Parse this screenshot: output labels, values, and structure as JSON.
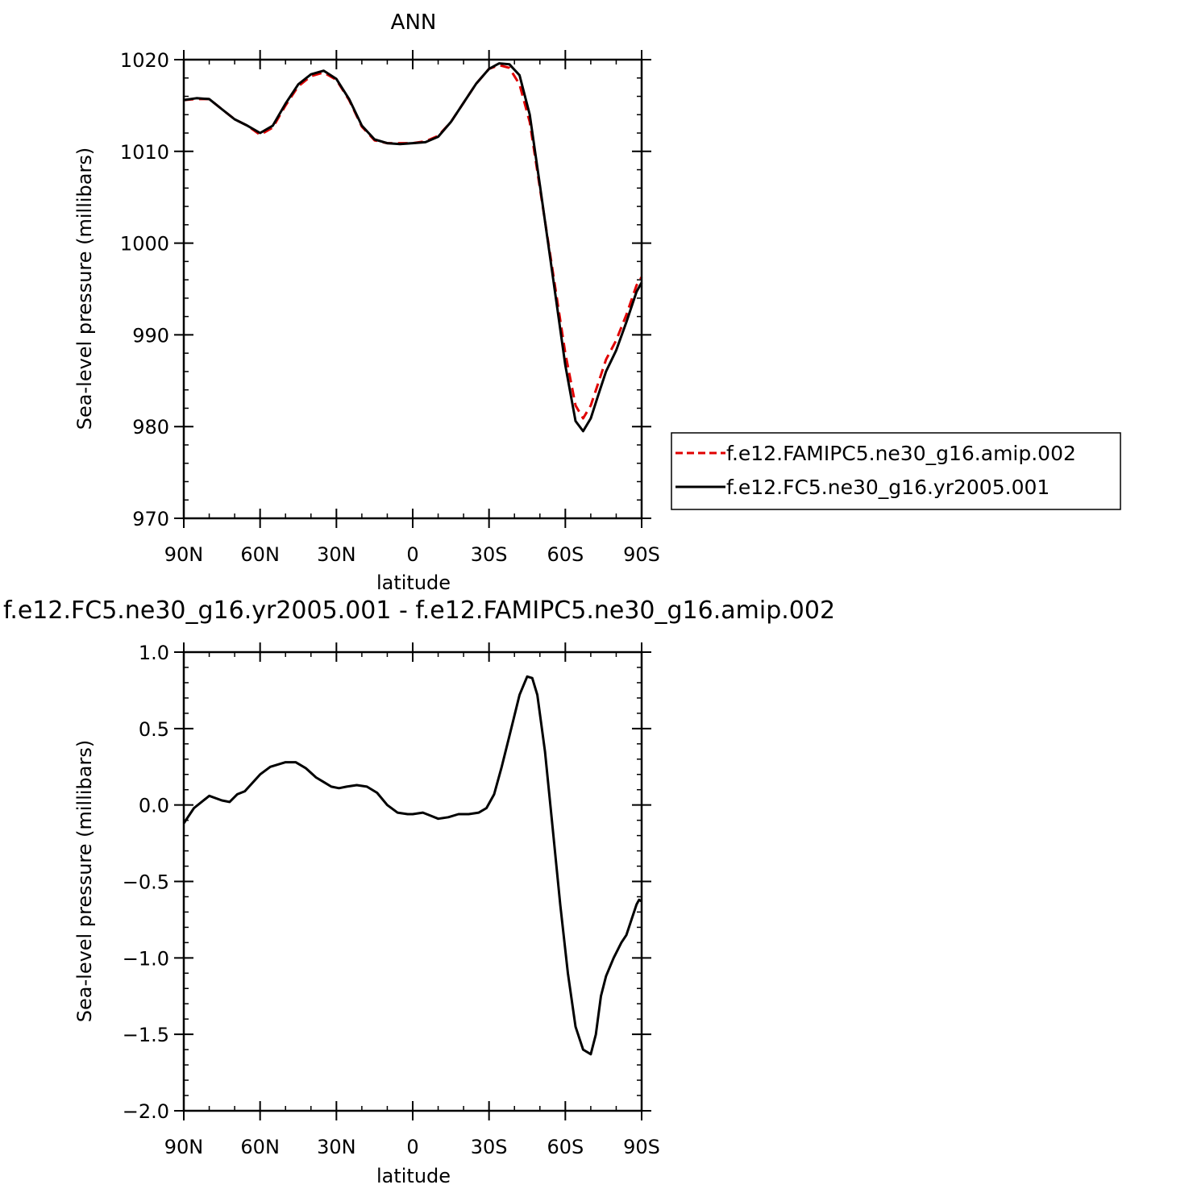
{
  "chart_data": [
    {
      "type": "line",
      "title": "ANN",
      "xlabel": "latitude",
      "ylabel": "Sea-level pressure (millibars)",
      "xlim": [
        90,
        -90
      ],
      "ylim": [
        970,
        1020
      ],
      "x_ticks": [
        {
          "value": 90,
          "label": "90N"
        },
        {
          "value": 60,
          "label": "60N"
        },
        {
          "value": 30,
          "label": "30N"
        },
        {
          "value": 0,
          "label": "0"
        },
        {
          "value": -30,
          "label": "30S"
        },
        {
          "value": -60,
          "label": "60S"
        },
        {
          "value": -90,
          "label": "90S"
        }
      ],
      "y_ticks": [
        {
          "value": 1020,
          "label": "1020"
        },
        {
          "value": 1010,
          "label": "1010"
        },
        {
          "value": 1000,
          "label": "1000"
        },
        {
          "value": 990,
          "label": "990"
        },
        {
          "value": 980,
          "label": "980"
        },
        {
          "value": 970,
          "label": "970"
        }
      ],
      "legend_position": "right",
      "series": [
        {
          "name": "f.e12.FAMIPC5.ne30_g16.amip.002",
          "color": "#e00000",
          "dash": "dashed",
          "x": [
            90,
            85,
            80,
            75,
            70,
            65,
            60,
            55,
            50,
            45,
            40,
            35,
            30,
            25,
            20,
            15,
            10,
            5,
            0,
            -5,
            -10,
            -15,
            -20,
            -25,
            -30,
            -34,
            -38,
            -42,
            -46,
            -50,
            -55,
            -60,
            -64,
            -67,
            -70,
            -73,
            -76,
            -80,
            -84,
            -88,
            -90
          ],
          "y": [
            1015.6,
            1015.7,
            1015.7,
            1014.6,
            1013.5,
            1012.8,
            1011.8,
            1012.6,
            1015.0,
            1017.1,
            1018.2,
            1018.6,
            1017.8,
            1015.6,
            1012.7,
            1011.2,
            1010.9,
            1010.9,
            1010.9,
            1011.1,
            1011.7,
            1013.2,
            1015.3,
            1017.4,
            1019.0,
            1019.4,
            1019.1,
            1017.3,
            1013.2,
            1006.0,
            997.0,
            988.0,
            982.3,
            980.9,
            982.3,
            984.8,
            987.3,
            989.4,
            992.2,
            995.4,
            996.3
          ]
        },
        {
          "name": "f.e12.FC5.ne30_g16.yr2005.001",
          "color": "#000000",
          "dash": "solid",
          "x": [
            90,
            85,
            80,
            75,
            70,
            65,
            60,
            55,
            50,
            45,
            40,
            35,
            30,
            25,
            20,
            15,
            10,
            5,
            0,
            -5,
            -10,
            -15,
            -20,
            -25,
            -30,
            -34,
            -38,
            -42,
            -46,
            -50,
            -55,
            -60,
            -64,
            -67,
            -70,
            -73,
            -76,
            -80,
            -84,
            -88,
            -90
          ],
          "y": [
            1015.6,
            1015.8,
            1015.7,
            1014.6,
            1013.5,
            1012.8,
            1012.0,
            1012.8,
            1015.2,
            1017.3,
            1018.4,
            1018.8,
            1017.9,
            1015.7,
            1012.8,
            1011.3,
            1010.9,
            1010.8,
            1010.9,
            1011.0,
            1011.6,
            1013.2,
            1015.3,
            1017.4,
            1019.0,
            1019.6,
            1019.5,
            1018.3,
            1014.0,
            1006.3,
            996.5,
            986.7,
            980.6,
            979.5,
            980.9,
            983.5,
            986.0,
            988.3,
            991.4,
            994.7,
            995.7
          ]
        }
      ]
    },
    {
      "type": "line",
      "title": "f.e12.FC5.ne30_g16.yr2005.001 - f.e12.FAMIPC5.ne30_g16.amip.002",
      "xlabel": "latitude",
      "ylabel": "Sea-level pressure (millibars)",
      "xlim": [
        90,
        -90
      ],
      "ylim": [
        -2.0,
        1.0
      ],
      "x_ticks": [
        {
          "value": 90,
          "label": "90N"
        },
        {
          "value": 60,
          "label": "60N"
        },
        {
          "value": 30,
          "label": "30N"
        },
        {
          "value": 0,
          "label": "0"
        },
        {
          "value": -30,
          "label": "30S"
        },
        {
          "value": -60,
          "label": "60S"
        },
        {
          "value": -90,
          "label": "90S"
        }
      ],
      "y_ticks": [
        {
          "value": 1.0,
          "label": "1.0"
        },
        {
          "value": 0.5,
          "label": "0.5"
        },
        {
          "value": 0.0,
          "label": "0.0"
        },
        {
          "value": -0.5,
          "label": "−0.5"
        },
        {
          "value": -1.0,
          "label": "−1.0"
        },
        {
          "value": -1.5,
          "label": "−1.5"
        },
        {
          "value": -2.0,
          "label": "−2.0"
        }
      ],
      "series": [
        {
          "color": "#000000",
          "dash": "solid",
          "x": [
            90,
            86,
            80,
            75,
            72,
            69,
            66,
            60,
            56,
            50,
            46,
            42,
            38,
            35,
            32,
            29,
            26,
            22,
            18,
            14,
            10,
            6,
            2,
            0,
            -4,
            -7,
            -10,
            -14,
            -18,
            -22,
            -26,
            -29,
            -32,
            -35,
            -38,
            -42,
            -45,
            -47,
            -49,
            -52,
            -55,
            -58,
            -61,
            -64,
            -67,
            -70,
            -72,
            -74,
            -76,
            -79,
            -82,
            -84,
            -86,
            -88,
            -89,
            -90
          ],
          "y": [
            -0.12,
            -0.02,
            0.06,
            0.03,
            0.02,
            0.07,
            0.09,
            0.2,
            0.25,
            0.28,
            0.28,
            0.24,
            0.18,
            0.15,
            0.12,
            0.11,
            0.12,
            0.13,
            0.12,
            0.08,
            0.0,
            -0.05,
            -0.06,
            -0.06,
            -0.05,
            -0.07,
            -0.09,
            -0.08,
            -0.06,
            -0.06,
            -0.05,
            -0.02,
            0.07,
            0.25,
            0.45,
            0.72,
            0.84,
            0.83,
            0.72,
            0.35,
            -0.15,
            -0.65,
            -1.1,
            -1.45,
            -1.6,
            -1.63,
            -1.5,
            -1.25,
            -1.12,
            -1.0,
            -0.9,
            -0.85,
            -0.75,
            -0.65,
            -0.62,
            -0.63
          ]
        }
      ]
    }
  ]
}
